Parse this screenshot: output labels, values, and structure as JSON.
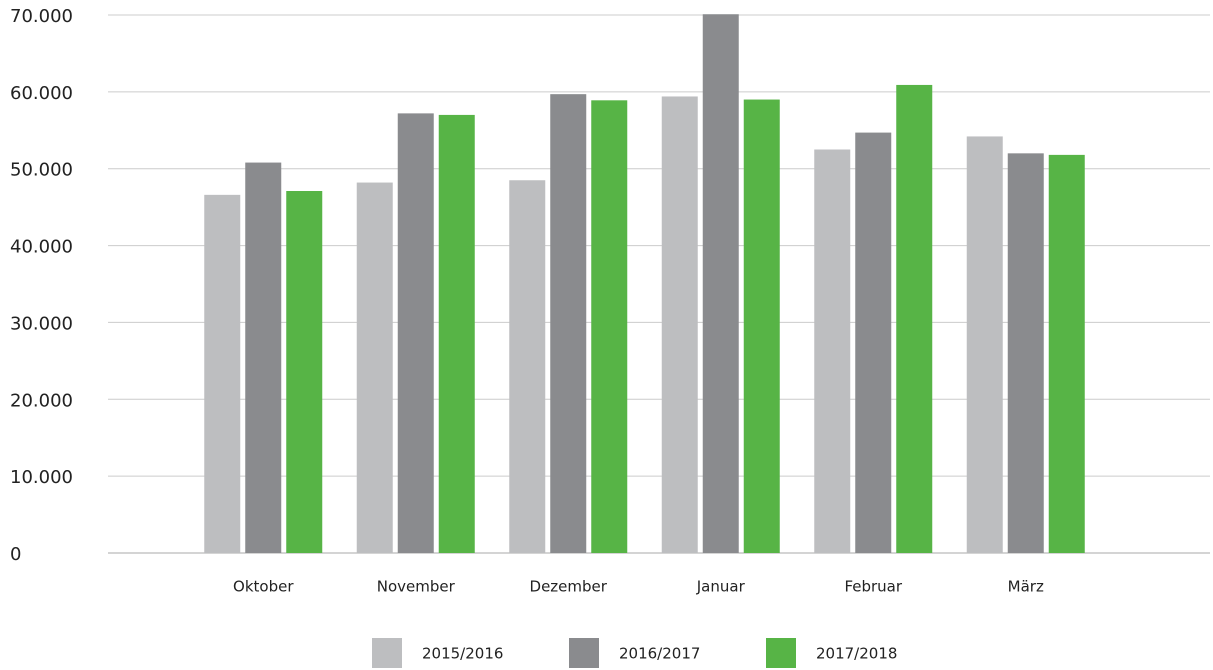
{
  "chart_data": {
    "type": "bar",
    "categories": [
      "Oktober",
      "November",
      "Dezember",
      "Januar",
      "Februar",
      "März"
    ],
    "series": [
      {
        "name": "2015/2016",
        "color": "#bdbec0",
        "values": [
          46600,
          48200,
          48500,
          59400,
          52500,
          54200
        ]
      },
      {
        "name": "2016/2017",
        "color": "#8a8b8e",
        "values": [
          50800,
          57200,
          59700,
          70100,
          54700,
          52000
        ]
      },
      {
        "name": "2017/2018",
        "color": "#57b446",
        "values": [
          47100,
          57000,
          58900,
          59000,
          60900,
          51800
        ]
      }
    ],
    "ylim": [
      0,
      70000
    ],
    "yticks": [
      0,
      {
        "value": 10000,
        "label": "10.000"
      },
      {
        "value": 20000,
        "label": "20.000"
      },
      {
        "value": 30000,
        "label": "30.000"
      },
      {
        "value": 40000,
        "label": "40.000"
      },
      {
        "value": 50000,
        "label": "50.000"
      },
      {
        "value": 60000,
        "label": "60.000"
      },
      {
        "value": 70000,
        "label": "70.000"
      }
    ],
    "grid": true,
    "legend": "bottom"
  }
}
